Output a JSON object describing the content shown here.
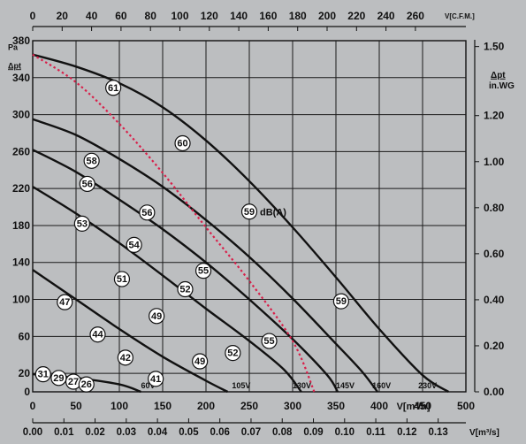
{
  "chart_data": {
    "type": "line",
    "title": "",
    "x_bottom_label": "V[m³/h]",
    "x_bottom_ticks": [
      "0",
      "50",
      "100",
      "150",
      "200",
      "250",
      "300",
      "350",
      "400",
      "450",
      "500"
    ],
    "x_bottom_range": [
      0,
      500
    ],
    "x_top_label": "V[C.F.M.]",
    "x_top_ticks": [
      "0",
      "20",
      "40",
      "60",
      "80",
      "100",
      "120",
      "140",
      "160",
      "180",
      "200",
      "220",
      "240",
      "260"
    ],
    "x_flow_label": "V[m³/s]",
    "x_flow_ticks": [
      "0.00",
      "0.01",
      "0.02",
      "0.03",
      "0.04",
      "0.05",
      "0.06",
      "0.07",
      "0.08",
      "0.09",
      "0.10",
      "0.11",
      "0.12",
      "0.13"
    ],
    "y_left_unit": "Pa",
    "y_left_label": "Δpt",
    "y_left_ticks": [
      "0",
      "20",
      "60",
      "100",
      "140",
      "180",
      "220",
      "260",
      "300",
      "340",
      "380"
    ],
    "y_left_range": [
      0,
      380
    ],
    "y_right_label": "Δpt",
    "y_right_unit": "in.WG",
    "y_right_ticks": [
      "0.00",
      "0.20",
      "0.40",
      "0.60",
      "0.80",
      "1.00",
      "1.20",
      "1.50"
    ],
    "series": [
      {
        "name": "230V",
        "label_at": 445,
        "points": [
          [
            0,
            365
          ],
          [
            50,
            352
          ],
          [
            100,
            334
          ],
          [
            150,
            308
          ],
          [
            200,
            272
          ],
          [
            250,
            228
          ],
          [
            300,
            178
          ],
          [
            350,
            124
          ],
          [
            400,
            68
          ],
          [
            450,
            18
          ],
          [
            480,
            0
          ]
        ]
      },
      {
        "name": "160V",
        "label_at": 392,
        "points": [
          [
            0,
            295
          ],
          [
            50,
            278
          ],
          [
            100,
            252
          ],
          [
            150,
            222
          ],
          [
            200,
            186
          ],
          [
            250,
            146
          ],
          [
            300,
            101
          ],
          [
            350,
            52
          ],
          [
            380,
            22
          ],
          [
            398,
            0
          ]
        ]
      },
      {
        "name": "145V",
        "label_at": 350,
        "points": [
          [
            0,
            262
          ],
          [
            50,
            238
          ],
          [
            100,
            208
          ],
          [
            150,
            176
          ],
          [
            200,
            140
          ],
          [
            250,
            100
          ],
          [
            300,
            57
          ],
          [
            340,
            18
          ],
          [
            352,
            0
          ]
        ]
      },
      {
        "name": "130V",
        "label_at": 300,
        "points": [
          [
            0,
            222
          ],
          [
            50,
            193
          ],
          [
            100,
            161
          ],
          [
            150,
            126
          ],
          [
            200,
            90
          ],
          [
            250,
            55
          ],
          [
            290,
            24
          ],
          [
            310,
            0
          ]
        ]
      },
      {
        "name": "105V",
        "label_at": 230,
        "points": [
          [
            0,
            132
          ],
          [
            50,
            100
          ],
          [
            100,
            68
          ],
          [
            150,
            38
          ],
          [
            200,
            12
          ],
          [
            225,
            0
          ]
        ]
      },
      {
        "name": "60V",
        "label_at": 125,
        "points": [
          [
            0,
            19
          ],
          [
            50,
            15
          ],
          [
            100,
            8
          ],
          [
            125,
            0
          ]
        ]
      }
    ],
    "system_line": {
      "points": [
        [
          0,
          365
        ],
        [
          50,
          335
        ],
        [
          100,
          290
        ],
        [
          150,
          237
        ],
        [
          200,
          178
        ],
        [
          250,
          120
        ],
        [
          300,
          55
        ],
        [
          325,
          0
        ]
      ]
    },
    "annotations_unit": "dB(A)",
    "annotations": [
      {
        "label": "61",
        "x": 93,
        "y": 329
      },
      {
        "label": "60",
        "x": 173,
        "y": 269
      },
      {
        "label": "59",
        "x": 250,
        "y": 195
      },
      {
        "label": "59",
        "x": 356,
        "y": 98
      },
      {
        "label": "58",
        "x": 68,
        "y": 250
      },
      {
        "label": "56",
        "x": 63,
        "y": 225
      },
      {
        "label": "56",
        "x": 132,
        "y": 194
      },
      {
        "label": "55",
        "x": 197,
        "y": 131
      },
      {
        "label": "55",
        "x": 273,
        "y": 55
      },
      {
        "label": "54",
        "x": 117,
        "y": 159
      },
      {
        "label": "53",
        "x": 57,
        "y": 182
      },
      {
        "label": "52",
        "x": 176,
        "y": 111
      },
      {
        "label": "52",
        "x": 231,
        "y": 42
      },
      {
        "label": "51",
        "x": 103,
        "y": 122
      },
      {
        "label": "49",
        "x": 143,
        "y": 82
      },
      {
        "label": "49",
        "x": 193,
        "y": 33
      },
      {
        "label": "47",
        "x": 37,
        "y": 97
      },
      {
        "label": "44",
        "x": 75,
        "y": 62
      },
      {
        "label": "42",
        "x": 107,
        "y": 37
      },
      {
        "label": "41",
        "x": 142,
        "y": 14
      },
      {
        "label": "31",
        "x": 12,
        "y": 19
      },
      {
        "label": "29",
        "x": 30,
        "y": 15
      },
      {
        "label": "27",
        "x": 47,
        "y": 11
      },
      {
        "label": "26",
        "x": 62,
        "y": 8
      }
    ]
  }
}
